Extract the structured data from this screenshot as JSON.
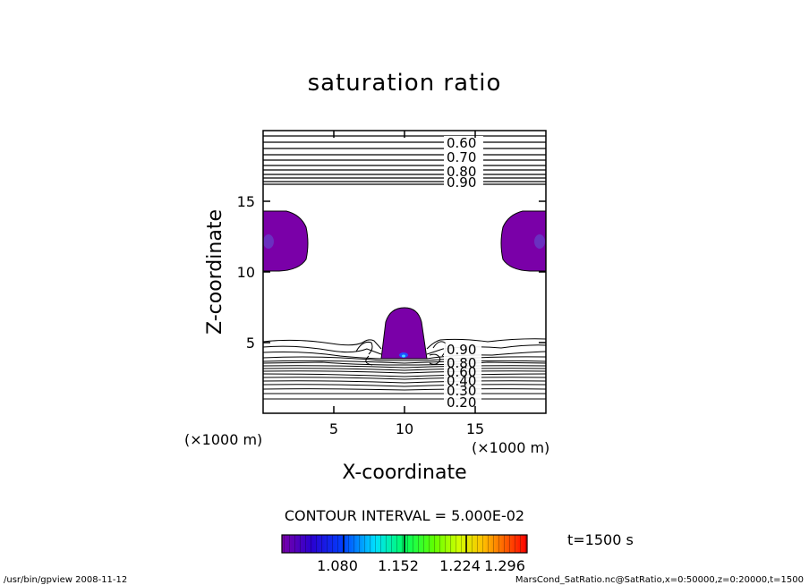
{
  "chart_data": {
    "type": "contour",
    "title": "saturation ratio",
    "xlabel": "X-coordinate",
    "ylabel": "Z-coordinate",
    "x_unit_label": "(×1000 m)",
    "y_unit_label": "(×1000 m)",
    "xlim": [
      0,
      20
    ],
    "ylim": [
      0,
      20
    ],
    "x_ticks": [
      "5",
      "10",
      "15"
    ],
    "y_ticks": [
      "5",
      "10",
      "15"
    ],
    "contour_interval_text": "CONTOUR INTERVAL = 5.000E-02",
    "time_label": "t=1500 s",
    "contour_labels_upper": [
      "0.60",
      "0.70",
      "0.80",
      "0.90"
    ],
    "contour_labels_lower": [
      "0.90",
      "0.80",
      "0.60",
      "0.40",
      "0.30",
      "0.20"
    ],
    "colorbar": {
      "tick_labels": [
        "1.080",
        "1.152",
        "1.224",
        "1.296"
      ],
      "range": [
        1.044,
        1.332
      ],
      "colors": [
        "#7a00a8",
        "#0000ff",
        "#00e0ff",
        "#00ff00",
        "#ffff00",
        "#ff0000"
      ]
    },
    "supersaturated_regions": [
      {
        "name": "left-edge",
        "x": [
          0,
          3
        ],
        "z": [
          10.2,
          14.3
        ]
      },
      {
        "name": "right-edge",
        "x": [
          17,
          20
        ],
        "z": [
          10.2,
          14.3
        ]
      },
      {
        "name": "center-plume",
        "x": [
          8.5,
          11.5
        ],
        "z": [
          3.8,
          7.6
        ]
      }
    ]
  },
  "footer": {
    "left": "/usr/bin/gpview   2008-11-12",
    "right": "MarsCond_SatRatio.nc@SatRatio,x=0:50000,z=0:20000,t=1500"
  }
}
